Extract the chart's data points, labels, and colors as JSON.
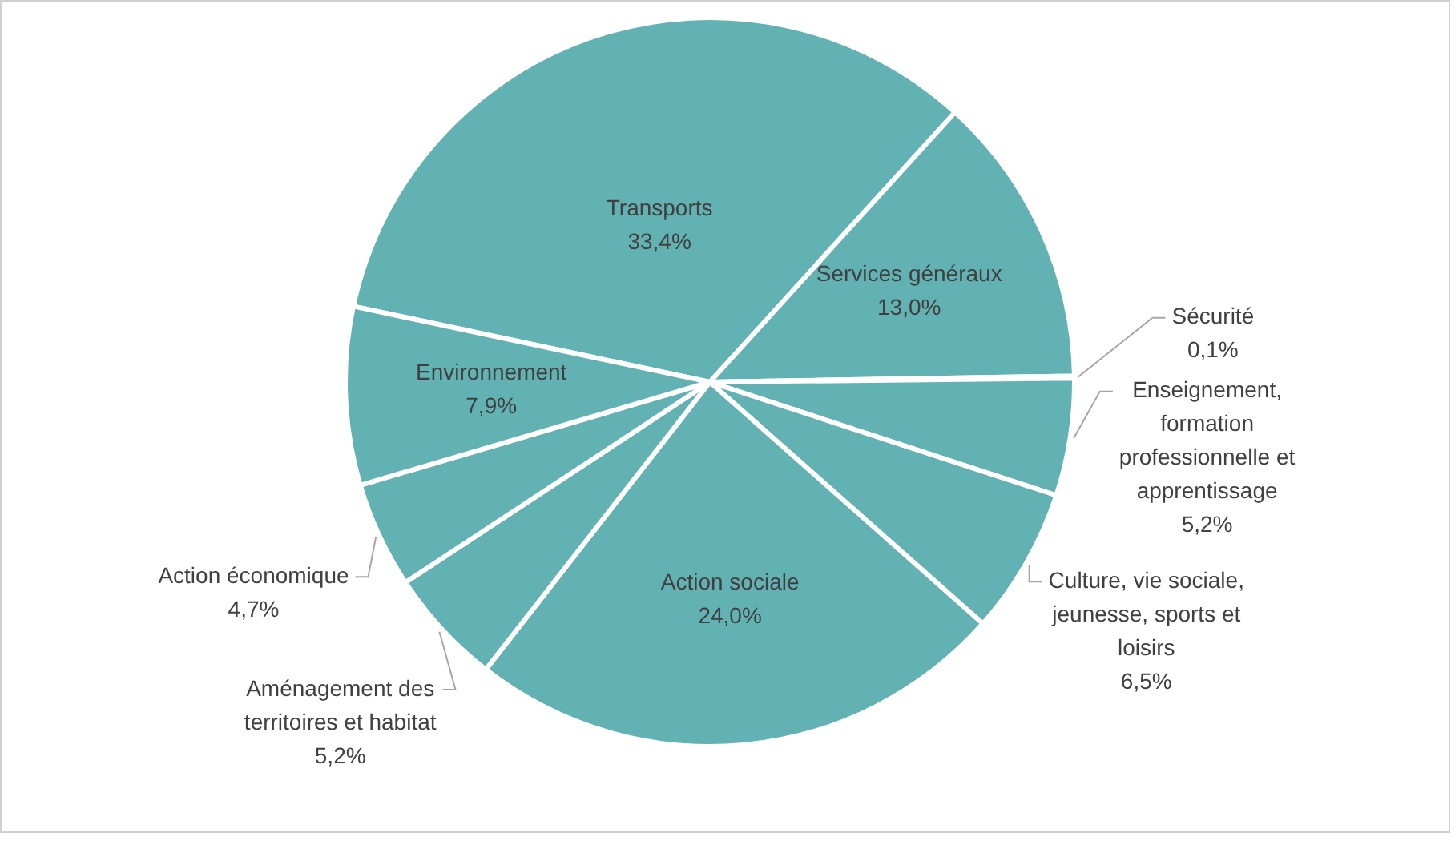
{
  "chart_data": {
    "type": "pie",
    "categories": [
      "Transports",
      "Services généraux",
      "Sécurité",
      "Enseignement, formation professionnelle et apprentissage",
      "Culture, vie sociale, jeunesse, sports et loisirs",
      "Action sociale",
      "Aménagement des territoires et habitat",
      "Action économique",
      "Environnement"
    ],
    "values": [
      33.4,
      13.0,
      0.1,
      5.2,
      6.5,
      24.0,
      5.2,
      4.7,
      7.9
    ],
    "value_labels": [
      "33,4%",
      "13,0%",
      "0,1%",
      "5,2%",
      "6,5%",
      "24,0%",
      "5,2%",
      "4,7%",
      "7,9%"
    ],
    "colors": [
      "#62b2b4",
      "#62b2b4",
      "#62b2b4",
      "#62b2b4",
      "#62b2b4",
      "#62b2b4",
      "#62b2b4",
      "#62b2b4",
      "#62b2b4"
    ],
    "legend": false
  }
}
